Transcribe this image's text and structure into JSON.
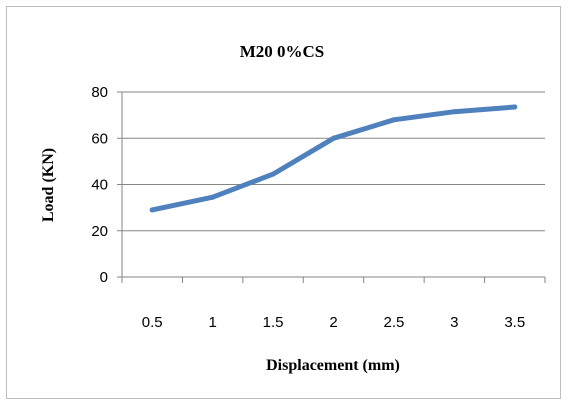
{
  "chart_data": {
    "type": "line",
    "title": "M20 0%CS",
    "xlabel": "Displacement (mm)",
    "ylabel": "Load (KN)",
    "categories": [
      "0.5",
      "1",
      "1.5",
      "2",
      "2.5",
      "3",
      "3.5"
    ],
    "series": [
      {
        "values": [
          29,
          34.5,
          44.5,
          60,
          68,
          71.5,
          73.5
        ],
        "color": "#4f81bd"
      }
    ],
    "ylim": [
      0,
      80
    ],
    "yticks": [
      0,
      20,
      40,
      60,
      80
    ],
    "grid": true,
    "legend": "none"
  }
}
